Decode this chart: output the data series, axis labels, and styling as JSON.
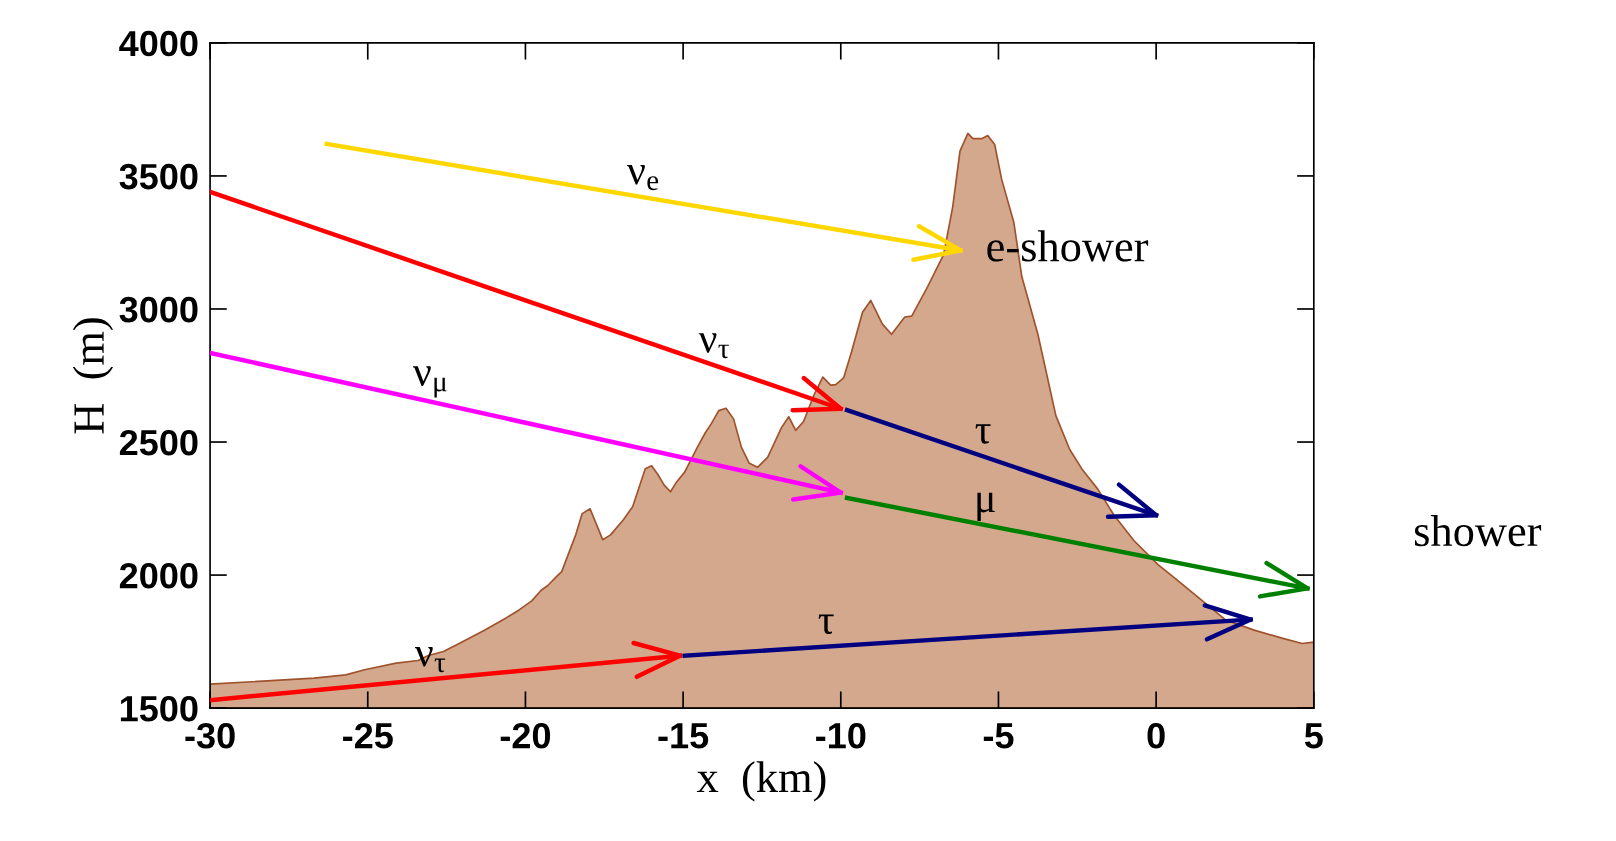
{
  "chart_data": {
    "type": "line",
    "xlabel": "x  (km)",
    "ylabel": "H  (m)",
    "xlim": [
      -30,
      5
    ],
    "xticks": [
      -30,
      -25,
      -20,
      -15,
      -10,
      -5,
      0,
      5
    ],
    "ylim": [
      1500,
      4000
    ],
    "yticks": [
      1500,
      2000,
      2500,
      3000,
      3500,
      4000
    ],
    "grid": false,
    "legend": false,
    "marker": "none",
    "line_style": "solid",
    "series": [
      {
        "type": "area",
        "color": "#d4a88c",
        "x": [
          -30,
          -26.7,
          -25.7,
          -25.1,
          -24.1,
          -23.4,
          -23.1,
          -22.6,
          -22.1,
          -21.3,
          -20.6,
          -20.2,
          -19.8,
          -19.5,
          -19.3,
          -19.0,
          -18.85,
          -18.4,
          -18.2,
          -17.95,
          -17.55,
          -17.3,
          -16.9,
          -16.6,
          -16.2,
          -16.0,
          -15.8,
          -15.6,
          -15.4,
          -15.2,
          -14.95,
          -14.55,
          -14.3,
          -14.1,
          -13.87,
          -13.64,
          -13.4,
          -13.15,
          -12.9,
          -12.64,
          -12.32,
          -11.88,
          -11.65,
          -11.43,
          -11.18,
          -10.86,
          -10.57,
          -10.32,
          -10.16,
          -9.91,
          -9.66,
          -9.31,
          -9.05,
          -8.68,
          -8.39,
          -7.97,
          -7.75,
          -7.24,
          -6.74,
          -6.45,
          -6.22,
          -5.97,
          -5.81,
          -5.53,
          -5.34,
          -5.12,
          -4.9,
          -4.51,
          -4.26,
          -3.75,
          -3.18,
          -2.74,
          -2.35,
          -1.85,
          -1.34,
          -0.7,
          0.06,
          0.69,
          1.45,
          2.22,
          3.11,
          3.99,
          4.63,
          5.0
        ],
        "values": [
          1590,
          1613,
          1625,
          1644,
          1669,
          1679,
          1697,
          1713,
          1743,
          1793,
          1840,
          1869,
          1903,
          1943,
          1960,
          1996,
          2013,
          2153,
          2231,
          2249,
          2133,
          2151,
          2207,
          2257,
          2400,
          2411,
          2378,
          2338,
          2313,
          2351,
          2387,
          2480,
          2534,
          2570,
          2618,
          2627,
          2587,
          2480,
          2420,
          2405,
          2442,
          2554,
          2595,
          2544,
          2577,
          2674,
          2744,
          2714,
          2716,
          2741,
          2838,
          2988,
          3032,
          2943,
          2905,
          2970,
          2973,
          3085,
          3204,
          3384,
          3593,
          3660,
          3640,
          3640,
          3652,
          3618,
          3488,
          3324,
          3122,
          2905,
          2599,
          2472,
          2398,
          2323,
          2226,
          2129,
          2039,
          1979,
          1905,
          1830,
          1793,
          1763,
          1743,
          1748
        ]
      },
      {
        "name": "ν$_{e}$",
        "color": "#ffd700",
        "x": [
          -26.3,
          -6.2
        ],
        "values": [
          3620,
          3220
        ]
      },
      {
        "name": "ν$_{τ}$",
        "color": "#ff0000",
        "x": [
          -30,
          -10
        ],
        "values": [
          3440,
          2625
        ]
      },
      {
        "name": "τ",
        "color": "#000080",
        "x": [
          -9.8,
          0
        ],
        "values": [
          2620,
          2225
        ]
      },
      {
        "name": "ν$_{μ}$",
        "color": "#ff00ff",
        "x": [
          -30,
          -10
        ],
        "values": [
          2835,
          2310
        ]
      },
      {
        "name": "μ",
        "color": "#008000",
        "x": [
          -9.8,
          4.8
        ],
        "values": [
          2290,
          1950
        ]
      },
      {
        "name": "ν$_{τ}$",
        "color": "#ff0000",
        "x": [
          -30,
          -15.1
        ],
        "values": [
          1530,
          1697
        ]
      },
      {
        "name": "τ",
        "color": "#000080",
        "x": [
          -14.95,
          3.0
        ],
        "values": [
          1697,
          1833
        ]
      }
    ],
    "annotations": [
      {
        "text": "e-shower",
        "x": -6.2,
        "y": 3220
      },
      "shower"
    ]
  }
}
